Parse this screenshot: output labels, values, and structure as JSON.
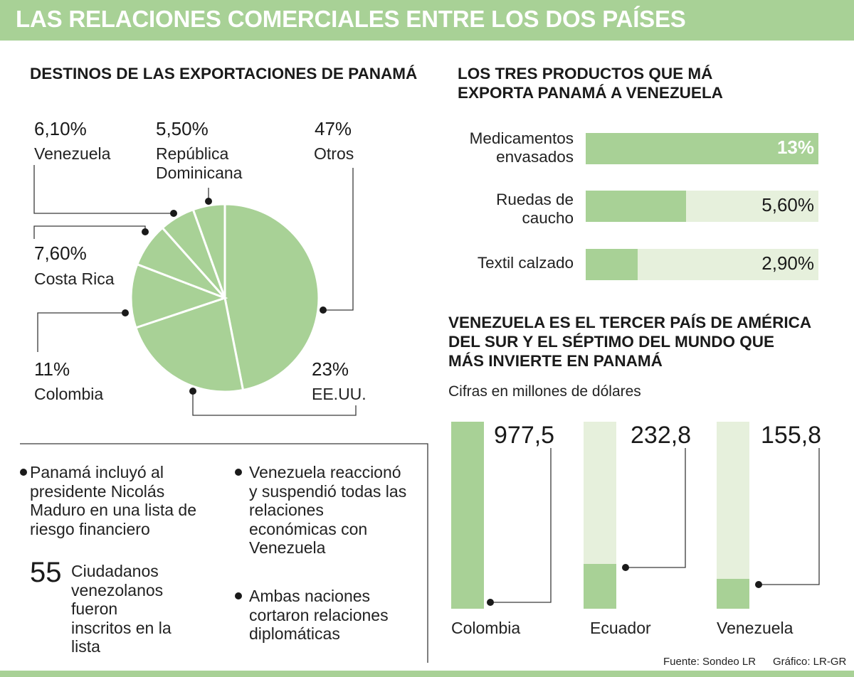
{
  "header": {
    "title": "LAS RELACIONES COMERCIALES ENTRE LOS DOS PAÍSES"
  },
  "colors": {
    "accent": "#a8d196",
    "accent_light": "#e6f0dc",
    "text": "#1a1a1a",
    "white": "#ffffff"
  },
  "chart_data": [
    {
      "type": "pie",
      "title": "DESTINOS DE LAS EXPORTACIONES DE PANAMÁ",
      "slices": [
        {
          "label": "EE.UU.",
          "value": 23,
          "display": "23%"
        },
        {
          "label": "Colombia",
          "value": 11,
          "display": "11%"
        },
        {
          "label": "Costa Rica",
          "value": 7.6,
          "display": "7,60%"
        },
        {
          "label": "Venezuela",
          "value": 6.1,
          "display": "6,10%"
        },
        {
          "label": "República Dominicana",
          "value": 5.5,
          "display": "5,50%"
        },
        {
          "label": "Otros",
          "value": 47,
          "display": "47%"
        }
      ]
    },
    {
      "type": "bar",
      "orientation": "horizontal",
      "title_lines": [
        "LOS TRES PRODUCTOS QUE MÁ",
        "EXPORTA PANAMÁ A VENEZUELA"
      ],
      "max": 13,
      "items": [
        {
          "label_lines": [
            "Medicamentos",
            "envasados"
          ],
          "value": 13,
          "display": "13%"
        },
        {
          "label_lines": [
            "Ruedas de",
            "caucho"
          ],
          "value": 5.6,
          "display": "5,60%"
        },
        {
          "label_lines": [
            "Textil calzado"
          ],
          "value": 2.9,
          "display": "2,90%"
        }
      ]
    },
    {
      "type": "bar",
      "orientation": "vertical",
      "title_lines": [
        "VENEZUELA ES EL TERCER PAÍS DE AMÉRICA",
        "DEL SUR Y EL SÉPTIMO DEL MUNDO QUE",
        "MÁS INVIERTE EN PANAMÁ"
      ],
      "subtitle": "Cifras en millones de dólares",
      "max": 977.5,
      "items": [
        {
          "label": "Colombia",
          "value": 977.5,
          "display": "977,5"
        },
        {
          "label": "Ecuador",
          "value": 232.8,
          "display": "232,8"
        },
        {
          "label": "Venezuela",
          "value": 155.8,
          "display": "155,8"
        }
      ]
    }
  ],
  "notes": {
    "left": {
      "bullet_lines": [
        "Panamá incluyó al",
        "presidente Nicolás",
        "Maduro en una lista de",
        "riesgo financiero"
      ],
      "stat_number": "55",
      "stat_lines": [
        "Ciudadanos",
        "venezolanos",
        "fueron",
        "inscritos en la",
        "lista"
      ]
    },
    "right": [
      {
        "lines": [
          "Venezuela reaccionó",
          "y suspendió todas las",
          "relaciones",
          "económicas con",
          "Venezuela"
        ]
      },
      {
        "lines": [
          "Ambas naciones",
          "cortaron relaciones",
          "diplomáticas"
        ]
      }
    ]
  },
  "footer": {
    "source": "Fuente: Sondeo LR",
    "graphic": "Gráfico: LR-GR"
  }
}
